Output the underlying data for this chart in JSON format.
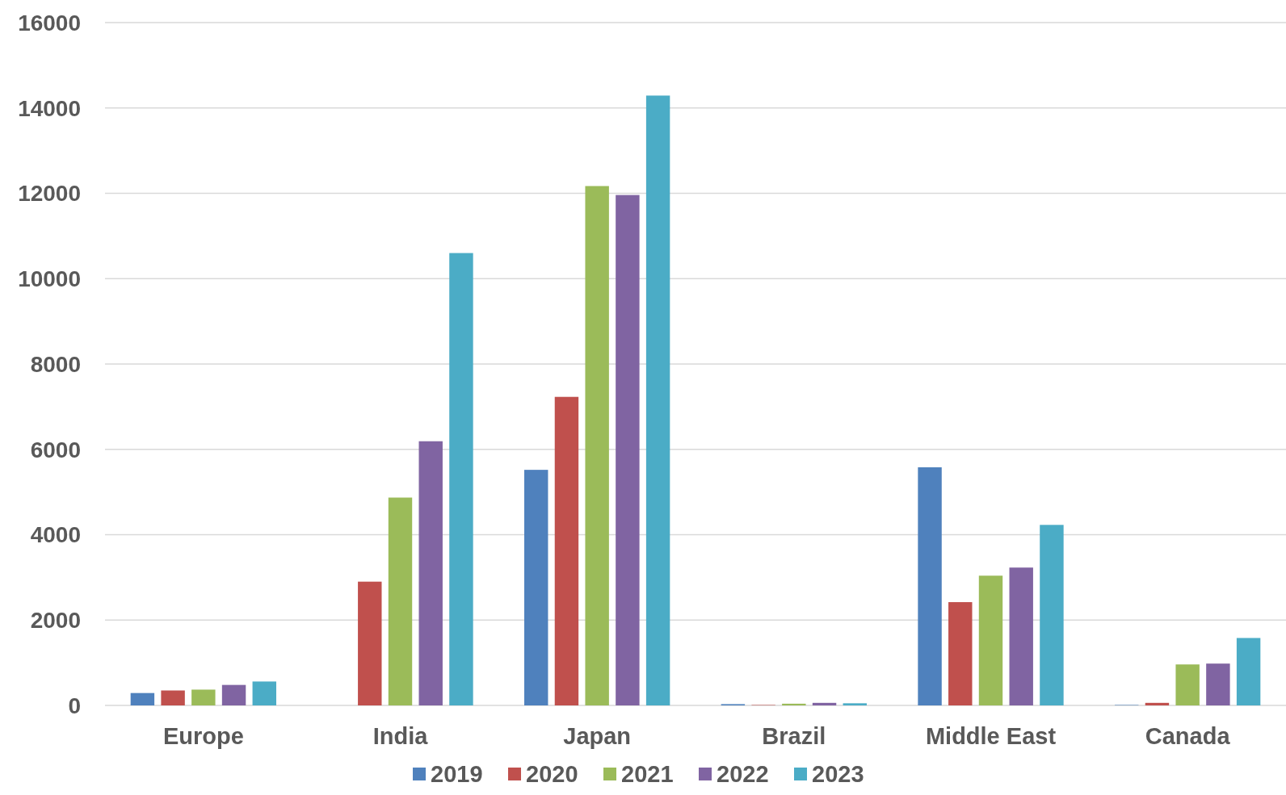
{
  "chart_data": {
    "type": "bar",
    "categories": [
      "Europe",
      "India",
      "Japan",
      "Brazil",
      "Middle East",
      "Canada"
    ],
    "series": [
      {
        "name": "2019",
        "color": "#4f81bd",
        "values": [
          290,
          0,
          5520,
          30,
          5580,
          10
        ]
      },
      {
        "name": "2020",
        "color": "#c0504d",
        "values": [
          350,
          2900,
          7230,
          10,
          2420,
          60
        ]
      },
      {
        "name": "2021",
        "color": "#9bbb59",
        "values": [
          370,
          4870,
          12170,
          40,
          3040,
          960
        ]
      },
      {
        "name": "2022",
        "color": "#8064a2",
        "values": [
          480,
          6190,
          11960,
          60,
          3230,
          980
        ]
      },
      {
        "name": "2023",
        "color": "#4bacc6",
        "values": [
          560,
          10600,
          14290,
          50,
          4230,
          1580
        ]
      }
    ],
    "ylim": [
      0,
      16000
    ],
    "yticks": [
      0,
      2000,
      4000,
      6000,
      8000,
      10000,
      12000,
      14000,
      16000
    ],
    "grid": "y",
    "legend": "bottom"
  }
}
